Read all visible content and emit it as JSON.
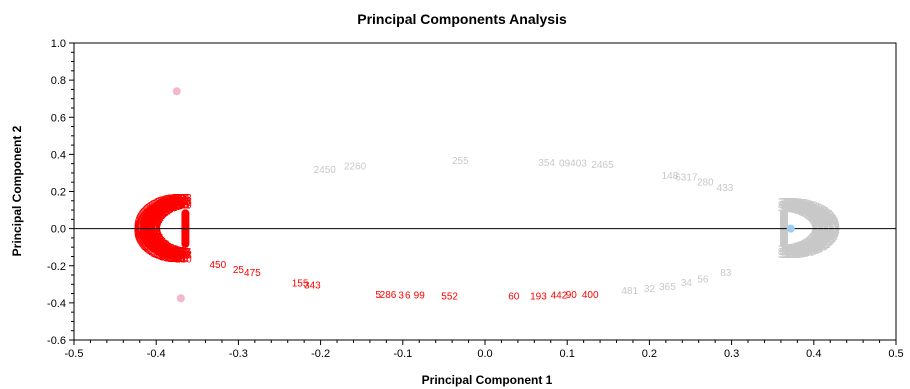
{
  "chart_data": {
    "type": "scatter",
    "title": "Principal Components Analysis",
    "xlabel": "Principal Component 1",
    "ylabel": "Principal Component 2",
    "xlim": [
      -0.5,
      0.5
    ],
    "ylim": [
      -0.6,
      1.0
    ],
    "xticks": [
      "-0.5",
      "-0.4",
      "-0.3",
      "-0.2",
      "-0.1",
      "0.0",
      "0.1",
      "0.2",
      "0.3",
      "0.4",
      "0.5"
    ],
    "yticks": [
      "-0.6",
      "-0.4",
      "-0.2",
      "0.0",
      "0.2",
      "0.4",
      "0.6",
      "0.8",
      "1.0"
    ],
    "zero_line": true,
    "grid": false,
    "colors": {
      "group_a": "#ff0000",
      "group_b": "#c8c8c8",
      "marker_pink": "#f4b6cf",
      "marker_blue": "#9ecbf0"
    },
    "labeled_points": [
      {
        "label": "2450",
        "x": -0.195,
        "y": 0.32,
        "group": "b"
      },
      {
        "label": "2260",
        "x": -0.158,
        "y": 0.34,
        "group": "b"
      },
      {
        "label": "255",
        "x": -0.03,
        "y": 0.37,
        "group": "b"
      },
      {
        "label": "354",
        "x": 0.075,
        "y": 0.36,
        "group": "b"
      },
      {
        "label": "09403",
        "x": 0.107,
        "y": 0.355,
        "group": "b"
      },
      {
        "label": "2465",
        "x": 0.143,
        "y": 0.348,
        "group": "b"
      },
      {
        "label": "148",
        "x": 0.225,
        "y": 0.29,
        "group": "b"
      },
      {
        "label": "6317",
        "x": 0.245,
        "y": 0.28,
        "group": "b"
      },
      {
        "label": "280",
        "x": 0.268,
        "y": 0.255,
        "group": "b"
      },
      {
        "label": "433",
        "x": 0.292,
        "y": 0.225,
        "group": "b"
      },
      {
        "label": "481",
        "x": 0.176,
        "y": -0.33,
        "group": "b"
      },
      {
        "label": "32",
        "x": 0.2,
        "y": -0.32,
        "group": "b"
      },
      {
        "label": "365",
        "x": 0.222,
        "y": -0.308,
        "group": "b"
      },
      {
        "label": "34",
        "x": 0.245,
        "y": -0.288,
        "group": "b"
      },
      {
        "label": "56",
        "x": 0.265,
        "y": -0.27,
        "group": "b"
      },
      {
        "label": "83",
        "x": 0.293,
        "y": -0.235,
        "group": "b"
      },
      {
        "label": "155",
        "x": -0.225,
        "y": -0.29,
        "group": "a"
      },
      {
        "label": "343",
        "x": -0.21,
        "y": -0.302,
        "group": "a"
      },
      {
        "label": "5",
        "x": -0.13,
        "y": -0.352,
        "group": "a"
      },
      {
        "label": "286",
        "x": -0.118,
        "y": -0.352,
        "group": "a"
      },
      {
        "label": "3",
        "x": -0.102,
        "y": -0.355,
        "group": "a"
      },
      {
        "label": "6",
        "x": -0.094,
        "y": -0.355,
        "group": "a"
      },
      {
        "label": "99",
        "x": -0.08,
        "y": -0.355,
        "group": "a"
      },
      {
        "label": "552",
        "x": -0.043,
        "y": -0.36,
        "group": "a"
      },
      {
        "label": "60",
        "x": 0.035,
        "y": -0.36,
        "group": "a"
      },
      {
        "label": "193",
        "x": 0.065,
        "y": -0.36,
        "group": "a"
      },
      {
        "label": "442",
        "x": 0.09,
        "y": -0.355,
        "group": "a"
      },
      {
        "label": "90",
        "x": 0.105,
        "y": -0.352,
        "group": "a"
      },
      {
        "label": "400",
        "x": 0.128,
        "y": -0.352,
        "group": "a"
      },
      {
        "label": "450",
        "x": -0.325,
        "y": -0.19,
        "group": "a"
      },
      {
        "label": "25",
        "x": -0.3,
        "y": -0.218,
        "group": "a"
      },
      {
        "label": "475",
        "x": -0.283,
        "y": -0.235,
        "group": "a"
      }
    ],
    "markers": [
      {
        "x": -0.375,
        "y": 0.74,
        "color": "#f4b6cf"
      },
      {
        "x": -0.37,
        "y": -0.375,
        "color": "#f4b6cf"
      },
      {
        "x": 0.372,
        "y": 0.0,
        "color": "#9ecbf0"
      }
    ],
    "clusters": [
      {
        "group": "a",
        "shape": "arc-left",
        "center": [
          -0.372,
          0.0
        ],
        "rx": 0.05,
        "ry": 0.22
      },
      {
        "group": "b",
        "shape": "arc-right",
        "center": [
          0.372,
          0.0
        ],
        "rx": 0.055,
        "ry": 0.22
      }
    ]
  }
}
